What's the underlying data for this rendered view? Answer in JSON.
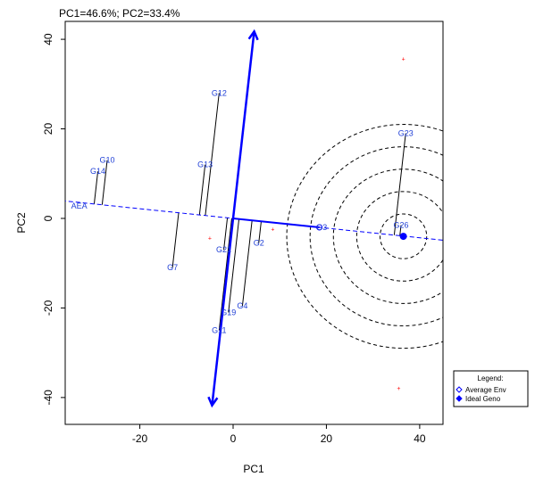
{
  "chart_data": {
    "type": "scatter",
    "title": "PC1=46.6%; PC2=33.4%",
    "xlabel": "PC1",
    "ylabel": "PC2",
    "xlim": [
      -36,
      45
    ],
    "ylim": [
      -46,
      44
    ],
    "xticks": [
      -20,
      0,
      20,
      40
    ],
    "yticks": [
      -40,
      -20,
      0,
      20,
      40
    ],
    "genotypes": [
      {
        "label": "G12",
        "x": -3,
        "y": 28
      },
      {
        "label": "G13",
        "x": -6,
        "y": 12
      },
      {
        "label": "G10",
        "x": -27,
        "y": 13
      },
      {
        "label": "G14",
        "x": -29,
        "y": 10.5
      },
      {
        "label": "G7",
        "x": -13,
        "y": -11
      },
      {
        "label": "G21",
        "x": -2,
        "y": -7
      },
      {
        "label": "G2",
        "x": 5.5,
        "y": -5.5
      },
      {
        "label": "G4",
        "x": 2,
        "y": -19.5
      },
      {
        "label": "G19",
        "x": -1,
        "y": -21
      },
      {
        "label": "G11",
        "x": -3,
        "y": -25
      },
      {
        "label": "G3",
        "x": 19,
        "y": -2
      },
      {
        "label": "G23",
        "x": 37,
        "y": 19
      },
      {
        "label": "G26",
        "x": 36,
        "y": -1.5
      }
    ],
    "axis_labels": [
      {
        "label": "AEA",
        "x": -33,
        "y": 3
      }
    ],
    "environments": [
      {
        "x": 36.5,
        "y": 35.5
      },
      {
        "x": -5,
        "y": -4.5
      },
      {
        "x": 8.5,
        "y": -2.5
      },
      {
        "x": 35.5,
        "y": -38
      }
    ],
    "aea_point": {
      "x": 18.5,
      "y": -2
    },
    "ideal_point": {
      "x": 36.5,
      "y": -4
    },
    "legend": {
      "title": "Legend:",
      "items": [
        "Average Env",
        "Ideal Geno"
      ],
      "position": "bottom-right"
    },
    "colors": {
      "marker": "#0000ff",
      "label": "#1f3fd6",
      "env": "#ff0000",
      "projection": "#000000"
    }
  }
}
